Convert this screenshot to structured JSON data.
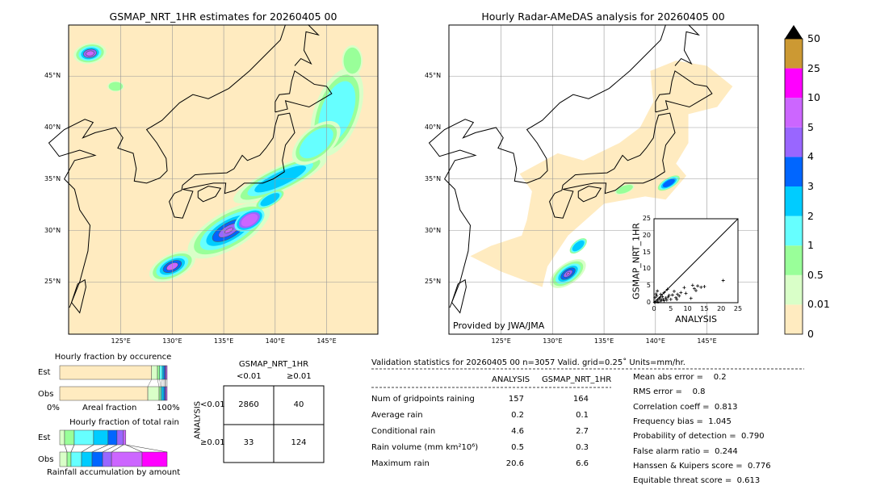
{
  "left_map": {
    "title": "GSMAP_NRT_1HR estimates for 20260405 00",
    "lon_ticks": [
      "125°E",
      "130°E",
      "135°E",
      "140°E",
      "145°E"
    ],
    "lat_ticks": [
      "45°N",
      "40°N",
      "35°N",
      "30°N",
      "25°N"
    ],
    "background_color": "#ffebc0"
  },
  "right_map": {
    "title": "Hourly Radar-AMeDAS analysis for 20260405 00",
    "lon_ticks": [
      "125°E",
      "130°E",
      "135°E",
      "140°E",
      "145°E"
    ],
    "lat_ticks": [
      "45°N",
      "40°N",
      "35°N",
      "30°N",
      "25°N"
    ],
    "credit": "Provided by JWA/JMA"
  },
  "scatter_inset": {
    "xlabel": "ANALYSIS",
    "ylabel": "GSMAP_NRT_1HR",
    "ticks": [
      "0",
      "5",
      "10",
      "15",
      "20",
      "25"
    ],
    "range": [
      0,
      25
    ]
  },
  "colorbar": {
    "levels": [
      "0",
      "0.01",
      "0.5",
      "1",
      "2",
      "3",
      "4",
      "5",
      "10",
      "25",
      "50"
    ],
    "colors": [
      "#ffebc0",
      "#d9ffc8",
      "#99ff99",
      "#66ffff",
      "#00ccff",
      "#0066ff",
      "#9966ff",
      "#cc66ff",
      "#ff00ff",
      "#cc9933"
    ],
    "extend_color": "#000000"
  },
  "occurrence": {
    "title": "Hourly fraction by occurence",
    "rows": [
      "Est",
      "Obs"
    ],
    "xlabel_left": "0%",
    "xlabel_mid": "Areal fraction",
    "xlabel_right": "100%",
    "est_fractions": [
      0.855,
      0.055,
      0.02,
      0.025,
      0.015,
      0.01,
      0.01,
      0.01
    ],
    "obs_fractions": [
      0.82,
      0.105,
      0.015,
      0.01,
      0.02,
      0.01,
      0.01,
      0.01
    ]
  },
  "total_rain": {
    "title": "Hourly fraction of total rain",
    "rows": [
      "Est",
      "Obs"
    ],
    "xlabel": "Rainfall accumulation by amount",
    "est_fractions": [
      0.045,
      0.09,
      0.18,
      0.135,
      0.083,
      0.06,
      0.022,
      0.0
    ],
    "obs_fractions": [
      0.068,
      0.037,
      0.098,
      0.098,
      0.098,
      0.083,
      0.285,
      0.233
    ]
  },
  "contingency": {
    "title": "GSMAP_NRT_1HR",
    "col_labels": [
      "<0.01",
      "≥0.01"
    ],
    "row_title": "ANALYSIS",
    "row_labels": [
      "<0.01",
      "≥0.01"
    ],
    "cells": [
      [
        "2860",
        "40"
      ],
      [
        "33",
        "124"
      ]
    ]
  },
  "stats": {
    "header": "Validation statistics for 20260405 00  n=3057 Valid. grid=0.25˚ Units=mm/hr.",
    "col_analysis": "ANALYSIS",
    "col_gsmap": "GSMAP_NRT_1HR",
    "rows": [
      {
        "label": "Num of gridpoints raining",
        "analysis": "157",
        "gsmap": "164"
      },
      {
        "label": "Average rain",
        "analysis": "0.2",
        "gsmap": "0.1"
      },
      {
        "label": "Conditional rain",
        "analysis": "4.6",
        "gsmap": "2.7"
      },
      {
        "label": "Rain volume (mm km²10⁶)",
        "analysis": "0.5",
        "gsmap": "0.3"
      },
      {
        "label": "Maximum rain",
        "analysis": "20.6",
        "gsmap": "6.6"
      }
    ],
    "scores": [
      "Mean abs error =    0.2",
      "RMS error =    0.8",
      "Correlation coeff =  0.813",
      "Frequency bias =  1.045",
      "Probability of detection =  0.790",
      "False alarm ratio =  0.244",
      "Hanssen & Kuipers score =  0.776",
      "Equitable threat score =  0.613"
    ]
  }
}
